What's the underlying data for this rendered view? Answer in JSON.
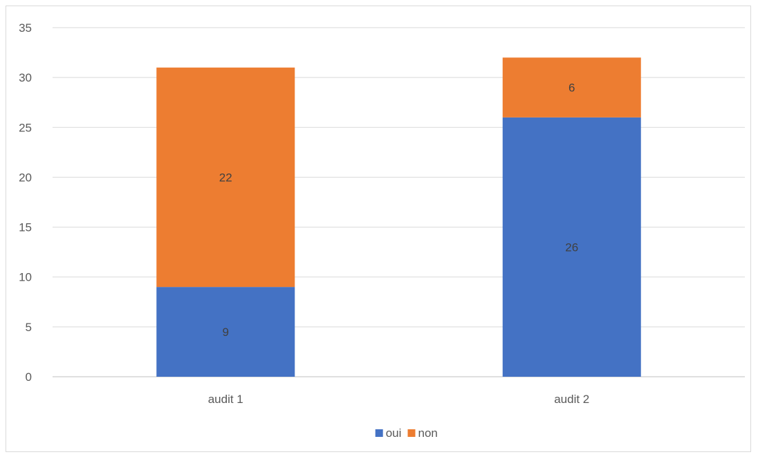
{
  "chart_data": {
    "type": "bar",
    "stacked": true,
    "categories": [
      "audit 1",
      "audit 2"
    ],
    "series": [
      {
        "name": "oui",
        "values": [
          9,
          26
        ],
        "color": "#4472C4"
      },
      {
        "name": "non",
        "values": [
          22,
          6
        ],
        "color": "#ED7D31"
      }
    ],
    "title": "",
    "xlabel": "",
    "ylabel": "",
    "ylim": [
      0,
      35
    ],
    "yticks": [
      0,
      5,
      10,
      15,
      20,
      25,
      30,
      35
    ],
    "grid": true,
    "legend_position": "bottom",
    "data_labels": true
  }
}
